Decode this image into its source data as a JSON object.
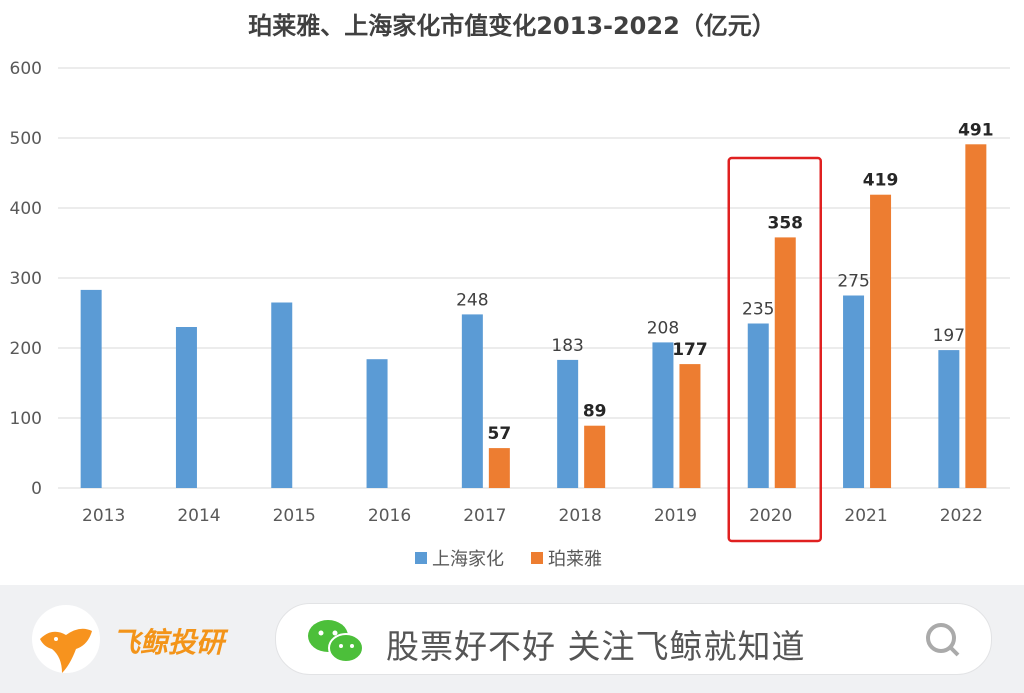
{
  "chart_data": {
    "type": "bar",
    "title": "珀莱雅、上海家化市值变化2013-2022（亿元）",
    "categories": [
      "2013",
      "2014",
      "2015",
      "2016",
      "2017",
      "2018",
      "2019",
      "2020",
      "2021",
      "2022"
    ],
    "series": [
      {
        "name": "上海家化",
        "color": "#5b9bd5",
        "values": [
          283,
          230,
          265,
          184,
          248,
          183,
          208,
          235,
          275,
          197
        ],
        "labels": [
          null,
          null,
          null,
          null,
          "248",
          "183",
          "208",
          "235",
          "275",
          "197"
        ]
      },
      {
        "name": "珀莱雅",
        "color": "#ed7d31",
        "values": [
          null,
          null,
          null,
          null,
          57,
          89,
          177,
          358,
          419,
          491
        ],
        "labels": [
          null,
          null,
          null,
          null,
          "57",
          "89",
          "177",
          "358",
          "419",
          "491"
        ]
      }
    ],
    "yticks": [
      "0",
      "100",
      "200",
      "300",
      "400",
      "500",
      "600"
    ],
    "ylim": [
      0,
      600
    ],
    "grid": true,
    "legend": "bottom",
    "highlight": "2020",
    "highlight_color": "#e02020"
  },
  "banner": {
    "brand": "飞鲸投研",
    "slogan": "股票好不好 关注飞鲸就知道"
  }
}
